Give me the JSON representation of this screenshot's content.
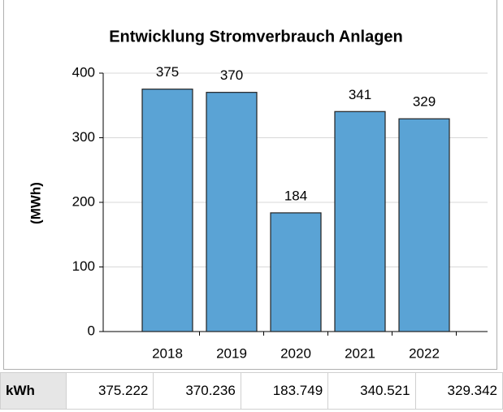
{
  "chart_data": {
    "type": "bar",
    "title": "Entwicklung Stromverbrauch Anlagen",
    "y_label": "(MWh)",
    "categories": [
      "2018",
      "2019",
      "2020",
      "2021",
      "2022"
    ],
    "values": [
      375.222,
      370.236,
      183.749,
      340.521,
      329.342
    ],
    "value_labels": [
      "375",
      "370",
      "184",
      "341",
      "329"
    ],
    "color": "#5aa3d5",
    "ylim": [
      0,
      400
    ],
    "yticks": [
      0,
      100,
      200,
      300,
      400
    ],
    "grid": true
  },
  "table": {
    "rows": [
      [
        "kWh",
        "375.222",
        "370.236",
        "183.749",
        "340.521",
        "329.342"
      ]
    ]
  }
}
